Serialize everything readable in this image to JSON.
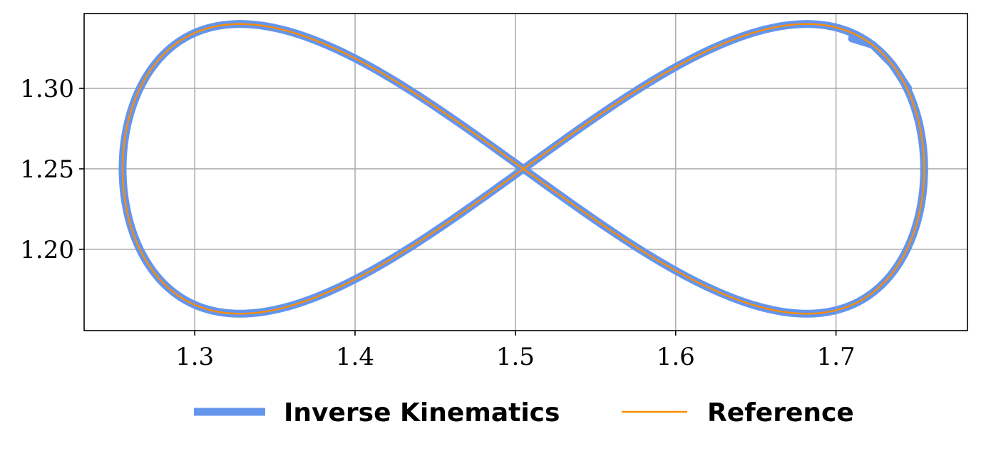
{
  "chart_data": {
    "type": "line",
    "title": "",
    "xlabel": "",
    "ylabel": "",
    "xlim": [
      1.231,
      1.782
    ],
    "ylim": [
      1.1495,
      1.3465
    ],
    "x_ticks": [
      1.3,
      1.4,
      1.5,
      1.6,
      1.7
    ],
    "x_tick_labels": [
      "1.3",
      "1.4",
      "1.5",
      "1.6",
      "1.7"
    ],
    "y_ticks": [
      1.2,
      1.25,
      1.3
    ],
    "y_tick_labels": [
      "1.20",
      "1.25",
      "1.30"
    ],
    "grid": true,
    "legend_position": "bottom",
    "curve": {
      "shape": "lemniscate of Gerono (figure-eight)",
      "x_center": 1.505,
      "y_center": 1.25,
      "x_half_width": 0.25,
      "y_half_height": 0.09
    },
    "series": [
      {
        "name": "Inverse Kinematics",
        "color": "#6495ED",
        "style": "thick line",
        "extra_points": [
          [
            1.745,
            1.3
          ],
          [
            1.735,
            1.315
          ],
          [
            1.723,
            1.327
          ],
          [
            1.71,
            1.331
          ]
        ]
      },
      {
        "name": "Reference",
        "color": "#FF8C00",
        "style": "thin line",
        "extra_points": []
      }
    ]
  }
}
